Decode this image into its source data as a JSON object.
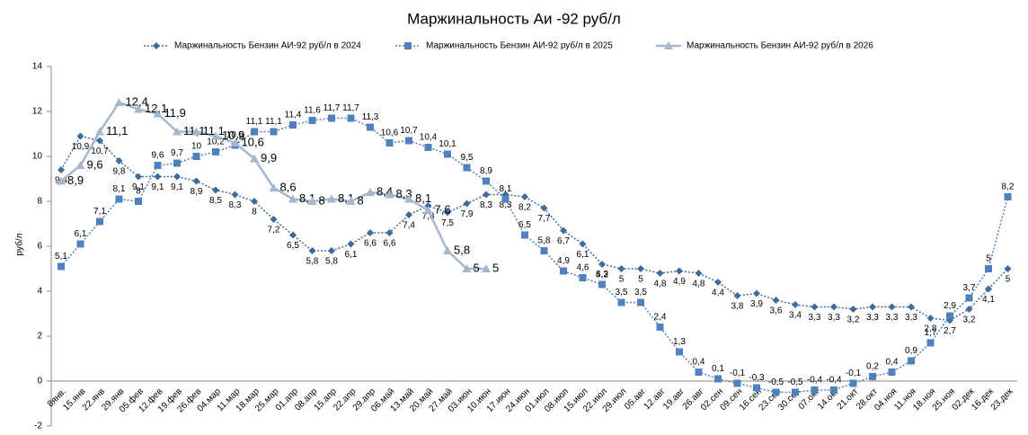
{
  "chart_data": {
    "type": "line",
    "title": "Маржинальность Аи -92 руб/л",
    "y_label": "руб/л",
    "categories": [
      "8янв.",
      "15.янв",
      "22.янв",
      "29.янв",
      "05.фев",
      "12.фев",
      "19.фев",
      "26.фев",
      "04.мар",
      "11.мар",
      "18.мар",
      "25.мар",
      "01.апр",
      "08.апр",
      "15.апр",
      "22.апр",
      "29.апр",
      "06.май",
      "13.май",
      "20.май",
      "27.май",
      "03.июн",
      "10.июн",
      "17.июн",
      "24.июн",
      "01.июл",
      "08.июл",
      "15.июл",
      "22.июл",
      "29.июл",
      "05.авг",
      "12.авг",
      "19.авг",
      "26.авг",
      "02.сен",
      "09.сен",
      "16.сен",
      "23.сен",
      "30.сен",
      "07.окт",
      "14.окт",
      "21.окт",
      "28.окт",
      "04.ноя",
      "11.ноя",
      "18.ноя",
      "25.ноя",
      "02.дек",
      "16.дек",
      "23.дек"
    ],
    "ylim": [
      -2,
      14
    ],
    "yticks": [
      -2,
      0,
      2,
      4,
      6,
      8,
      10,
      12,
      14
    ],
    "series": [
      {
        "name": "Маржинальность Бензин АИ-92 руб/л в 2024",
        "color": "#3e6a9c",
        "marker": "diamond",
        "line": "dotted",
        "label_position": "below",
        "values": [
          9.4,
          10.9,
          10.7,
          9.8,
          9.1,
          9.1,
          9.1,
          8.9,
          8.5,
          8.3,
          8,
          7.2,
          6.5,
          5.8,
          5.8,
          6.1,
          6.6,
          6.6,
          7.4,
          7.8,
          7.5,
          7.9,
          8.3,
          8.3,
          8.2,
          7.7,
          6.7,
          6.1,
          5.2,
          5,
          5,
          4.8,
          4.9,
          4.8,
          4.4,
          3.8,
          3.9,
          3.6,
          3.4,
          3.3,
          3.3,
          3.2,
          3.3,
          3.3,
          3.3,
          2.8,
          2.7,
          3.2,
          4.1,
          5
        ],
        "value_labels": [
          "9,4",
          "10,9",
          "10,7",
          "9,8",
          "9,1",
          "9,1",
          "9,1",
          "8,9",
          "8,5",
          "8,3",
          "8",
          "7,2",
          "6,5",
          "5,8",
          "5,8",
          "6,1",
          "6,6",
          "6,6",
          "7,4",
          "7,8",
          "7,5",
          "7,9",
          "8,3",
          "8,3",
          "8,2",
          "7,7",
          "6,7",
          "6,1",
          "5,2",
          "5",
          "5",
          "4,8",
          "4,9",
          "4,8",
          "4,4",
          "3,8",
          "3,9",
          "3,6",
          "3,4",
          "3,3",
          "3,3",
          "3,2",
          "3,3",
          "3,3",
          "3,3",
          "2,8",
          "2,7",
          "3,2",
          "4,1",
          "5"
        ]
      },
      {
        "name": "Маржинальность Бензин АИ-92 руб/л в 2025",
        "color": "#4f81bd",
        "marker": "square",
        "line": "dotted",
        "label_position": "above",
        "values": [
          5.1,
          6.1,
          7.1,
          8.1,
          8,
          9.6,
          9.7,
          10,
          10.2,
          10.5,
          11.1,
          11.1,
          11.4,
          11.6,
          11.7,
          11.7,
          11.3,
          10.6,
          10.7,
          10.4,
          10.1,
          9.5,
          8.9,
          8.1,
          6.5,
          5.8,
          4.9,
          4.6,
          4.3,
          3.5,
          3.5,
          2.4,
          1.3,
          0.4,
          0.1,
          -0.1,
          -0.3,
          -0.5,
          -0.5,
          -0.4,
          -0.4,
          -0.1,
          0.2,
          0.4,
          0.9,
          1.7,
          2.9,
          3.7,
          5,
          8.2
        ],
        "value_labels": [
          "5,1",
          "6,1",
          "7,1",
          "8,1",
          "8",
          "9,6",
          "9,7",
          "10",
          "10,2",
          "10,5",
          "11,1",
          "11,1",
          "11,4",
          "11,6",
          "11,7",
          "11,7",
          "11,3",
          "10,6",
          "10,7",
          "10,4",
          "10,1",
          "9,5",
          "8,9",
          "8,1",
          "6,5",
          "5,8",
          "4,9",
          "4,6",
          "4,3",
          "3,5",
          "3,5",
          "2,4",
          "1,3",
          "0,4",
          "0,1",
          "-0,1",
          "-0,3",
          "-0,5",
          "-0,5",
          "-0,4",
          "-0,4",
          "-0,1",
          "0,2",
          "0,4",
          "0,9",
          "1,7",
          "2,9",
          "3,7",
          "5",
          "8,2"
        ]
      },
      {
        "name": "Маржинальность Бензин АИ-92 руб/л в 2026",
        "color": "#a7b6cf",
        "marker": "triangle",
        "line": "solid",
        "label_position": "right",
        "values": [
          8.9,
          9.6,
          11.1,
          12.4,
          12.1,
          11.9,
          11.1,
          11.1,
          10.9,
          10.6,
          9.9,
          8.6,
          8.1,
          8,
          8.1,
          8,
          8.4,
          8.3,
          8.1,
          7.6,
          5.8,
          5,
          5,
          null,
          null,
          null,
          null,
          null,
          null,
          null,
          null,
          null,
          null,
          null,
          null,
          null,
          null,
          null,
          null,
          null,
          null,
          null,
          null,
          null,
          null,
          null,
          null,
          null,
          null,
          null
        ],
        "value_labels": [
          "8,9",
          "9,6",
          "11,1",
          "12,4",
          "12,1",
          "11,9",
          "11,1",
          "11,1",
          "10,9",
          "10,6",
          "9,9",
          "8,6",
          "8,1",
          "8",
          "8,1",
          "8",
          "8,4",
          "8,3",
          "8,1",
          "7,6",
          "5,8",
          "5",
          "5",
          null,
          null,
          null,
          null,
          null,
          null,
          null,
          null,
          null,
          null,
          null,
          null,
          null,
          null,
          null,
          null,
          null,
          null,
          null,
          null,
          null,
          null,
          null,
          null,
          null,
          null,
          null
        ]
      }
    ]
  }
}
